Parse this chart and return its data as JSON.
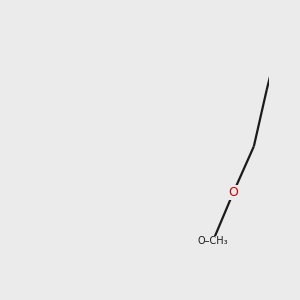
{
  "background_color": "#ebebeb",
  "bond_color": "#1a1a1a",
  "nitrogen_color": "#1414cc",
  "oxygen_color": "#cc0000",
  "h_color": "#3a9a9a",
  "figsize": [
    3.0,
    3.0
  ],
  "dpi": 100,
  "bond_lw": 1.6,
  "font_size": 9.0,
  "small_font": 8.0
}
